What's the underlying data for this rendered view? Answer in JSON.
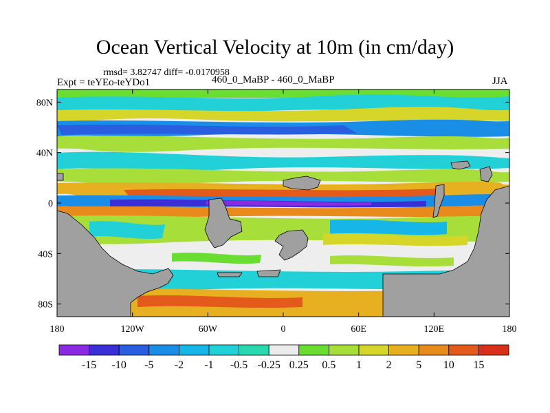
{
  "title": "Ocean Vertical Velocity at 10m (in cm/day)",
  "stats_line": "rmsd= 3.82747 diff= -0.0170958",
  "expt_line": "Expt = teYEo-teYDo1",
  "subtitle": "460_0_MaBP - 460_0_MaBP",
  "season": "JJA",
  "chart_data": {
    "type": "heatmap",
    "title": "Ocean Vertical Velocity at 10m (in cm/day)",
    "variable": "Ocean vertical velocity difference",
    "units": "cm/day",
    "x_ticks": [
      "180",
      "120W",
      "60W",
      "0",
      "60E",
      "120E",
      "180"
    ],
    "x_range": [
      -180,
      180
    ],
    "y_ticks": [
      "80N",
      "40N",
      "0",
      "40S",
      "80S"
    ],
    "y_range": [
      -90,
      90
    ],
    "colorbar": {
      "labels": [
        "-15",
        "-10",
        "-5",
        "-2",
        "-1",
        "-0.5",
        "-0.25",
        "0.25",
        "0.5",
        "1",
        "2",
        "5",
        "10",
        "15"
      ],
      "colors": [
        "#8a2be2",
        "#3a2fd6",
        "#2a5ee0",
        "#1a8ee6",
        "#16b6e8",
        "#22d0d8",
        "#2ad8b0",
        "#ececec",
        "#6ade30",
        "#a8de3a",
        "#d6d62a",
        "#e6b020",
        "#e88a1c",
        "#e45a1a",
        "#d8301a"
      ]
    },
    "land_color": "#a0a0a0",
    "legend": "bottom"
  }
}
